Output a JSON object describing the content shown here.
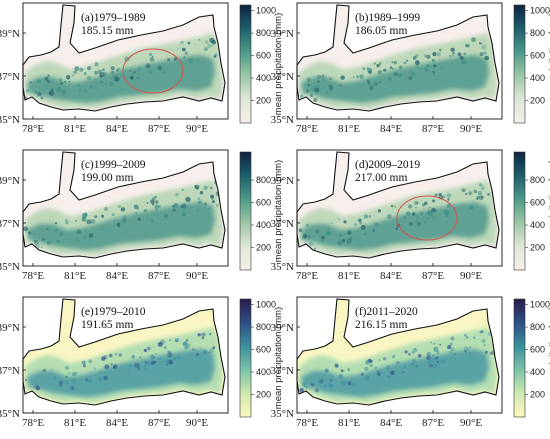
{
  "axes": {
    "x_ticks": [
      "78°E",
      "81°E",
      "84°E",
      "87°E",
      "90°E"
    ],
    "y_ticks": [
      "39°N",
      "37°N",
      "35°N"
    ]
  },
  "colorbar": {
    "title": "mean precipitation (mm)"
  },
  "panels": [
    {
      "id": "a",
      "period": "(a)1979–1989",
      "value": "185.15 mm",
      "palette": "dry",
      "highlight": true,
      "colorbar_ticks": [
        "1000",
        "800",
        "600",
        "400",
        "200"
      ]
    },
    {
      "id": "b",
      "period": "(b)1989–1999",
      "value": "186.05 mm",
      "palette": "dry",
      "highlight": false,
      "colorbar_ticks": [
        "1000",
        "800",
        "600",
        "400",
        "200"
      ]
    },
    {
      "id": "c",
      "period": "(c)1999–2009",
      "value": "199.00 mm",
      "palette": "dry",
      "highlight": false,
      "colorbar_ticks": [
        "800",
        "600",
        "400",
        "200"
      ]
    },
    {
      "id": "d",
      "period": "(d)2009–2019",
      "value": "217.00 mm",
      "palette": "dry",
      "highlight": true,
      "colorbar_ticks": [
        "800",
        "600",
        "400",
        "200"
      ]
    },
    {
      "id": "e",
      "period": "(e)1979–2010",
      "value": "191.65 mm",
      "palette": "yellow",
      "highlight": false,
      "colorbar_ticks": [
        "1000",
        "800",
        "600",
        "400",
        "200"
      ]
    },
    {
      "id": "f",
      "period": "(f)2011–2020",
      "value": "216.15 mm",
      "palette": "yellow",
      "highlight": false,
      "colorbar_ticks": [
        "1000",
        "800",
        "600",
        "400",
        "200"
      ]
    }
  ]
}
